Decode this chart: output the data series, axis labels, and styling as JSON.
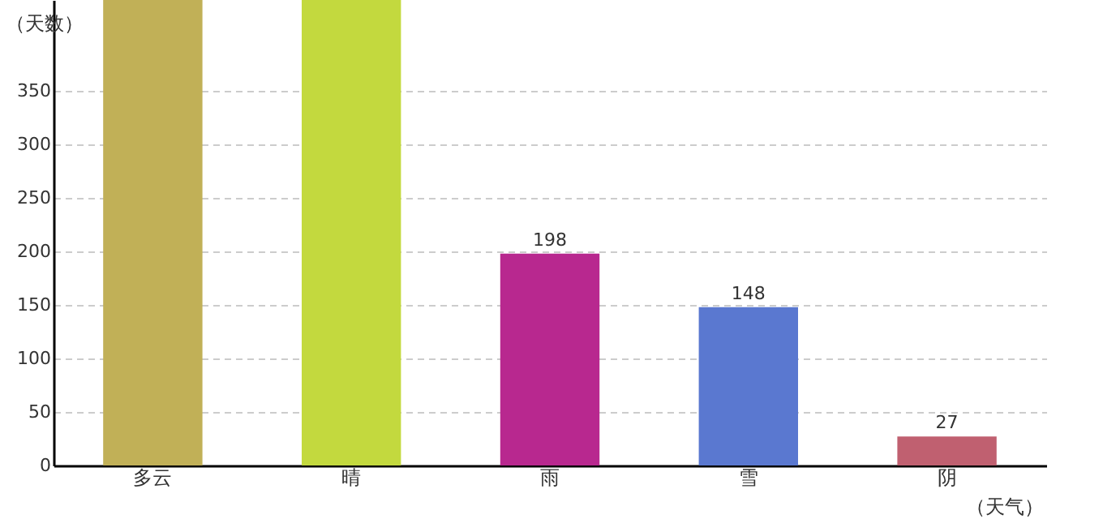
{
  "chart_data": {
    "type": "bar",
    "xlabel": "（天气）",
    "ylabel": "（天数）",
    "categories": [
      "多云",
      "晴",
      "雨",
      "雪",
      "阴"
    ],
    "values": [
      435,
      435,
      198,
      148,
      27
    ],
    "colors": [
      "#c1b057",
      "#c3d93e",
      "#b8288f",
      "#5a78d0",
      "#c06070"
    ],
    "value_labels": [
      null,
      null,
      "198",
      "148",
      "27"
    ],
    "ylim": [
      0,
      435
    ],
    "yticks": [
      0,
      50,
      100,
      150,
      200,
      250,
      300,
      350
    ],
    "grid": "y",
    "legend": false
  }
}
